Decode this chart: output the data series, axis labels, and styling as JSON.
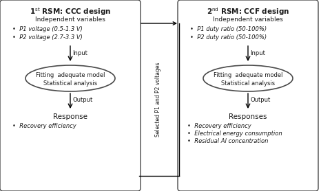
{
  "box1_title_plain": "1",
  "box1_title_sup": "st",
  "box1_title_rest": " RSM: CCC design",
  "box2_title_plain": "2",
  "box2_title_sup": "nd",
  "box2_title_rest": " RSM: CCF design",
  "box1_indep_title": "Independent variables",
  "box2_indep_title": "Independent variables",
  "box1_vars": [
    "P1 voltage (0.5-1.3 V)",
    "P2 voltage (2.7-3.3 V)"
  ],
  "box2_vars": [
    "P1 duty ratio (50-100%)",
    "P2 duty ratio (50-100%)"
  ],
  "input_label": "Input",
  "output_label": "Output",
  "box1_response_title": "Response",
  "box2_response_title": "Responses",
  "box1_responses": [
    "Recovery efficiency"
  ],
  "box2_responses": [
    "Recovery efficiency",
    "Electrical energy consumption",
    "Residual Al concentration"
  ],
  "arrow_label": "Selected P1 and P2 voltages",
  "ellipse_line1": "Fitting  adequate model",
  "ellipse_line2": "Statistical analysis",
  "bg_color": "#ffffff",
  "text_color": "#1a1a1a",
  "box_edgecolor": "#4a4a4a",
  "ellipse_edgecolor": "#4a4a4a"
}
